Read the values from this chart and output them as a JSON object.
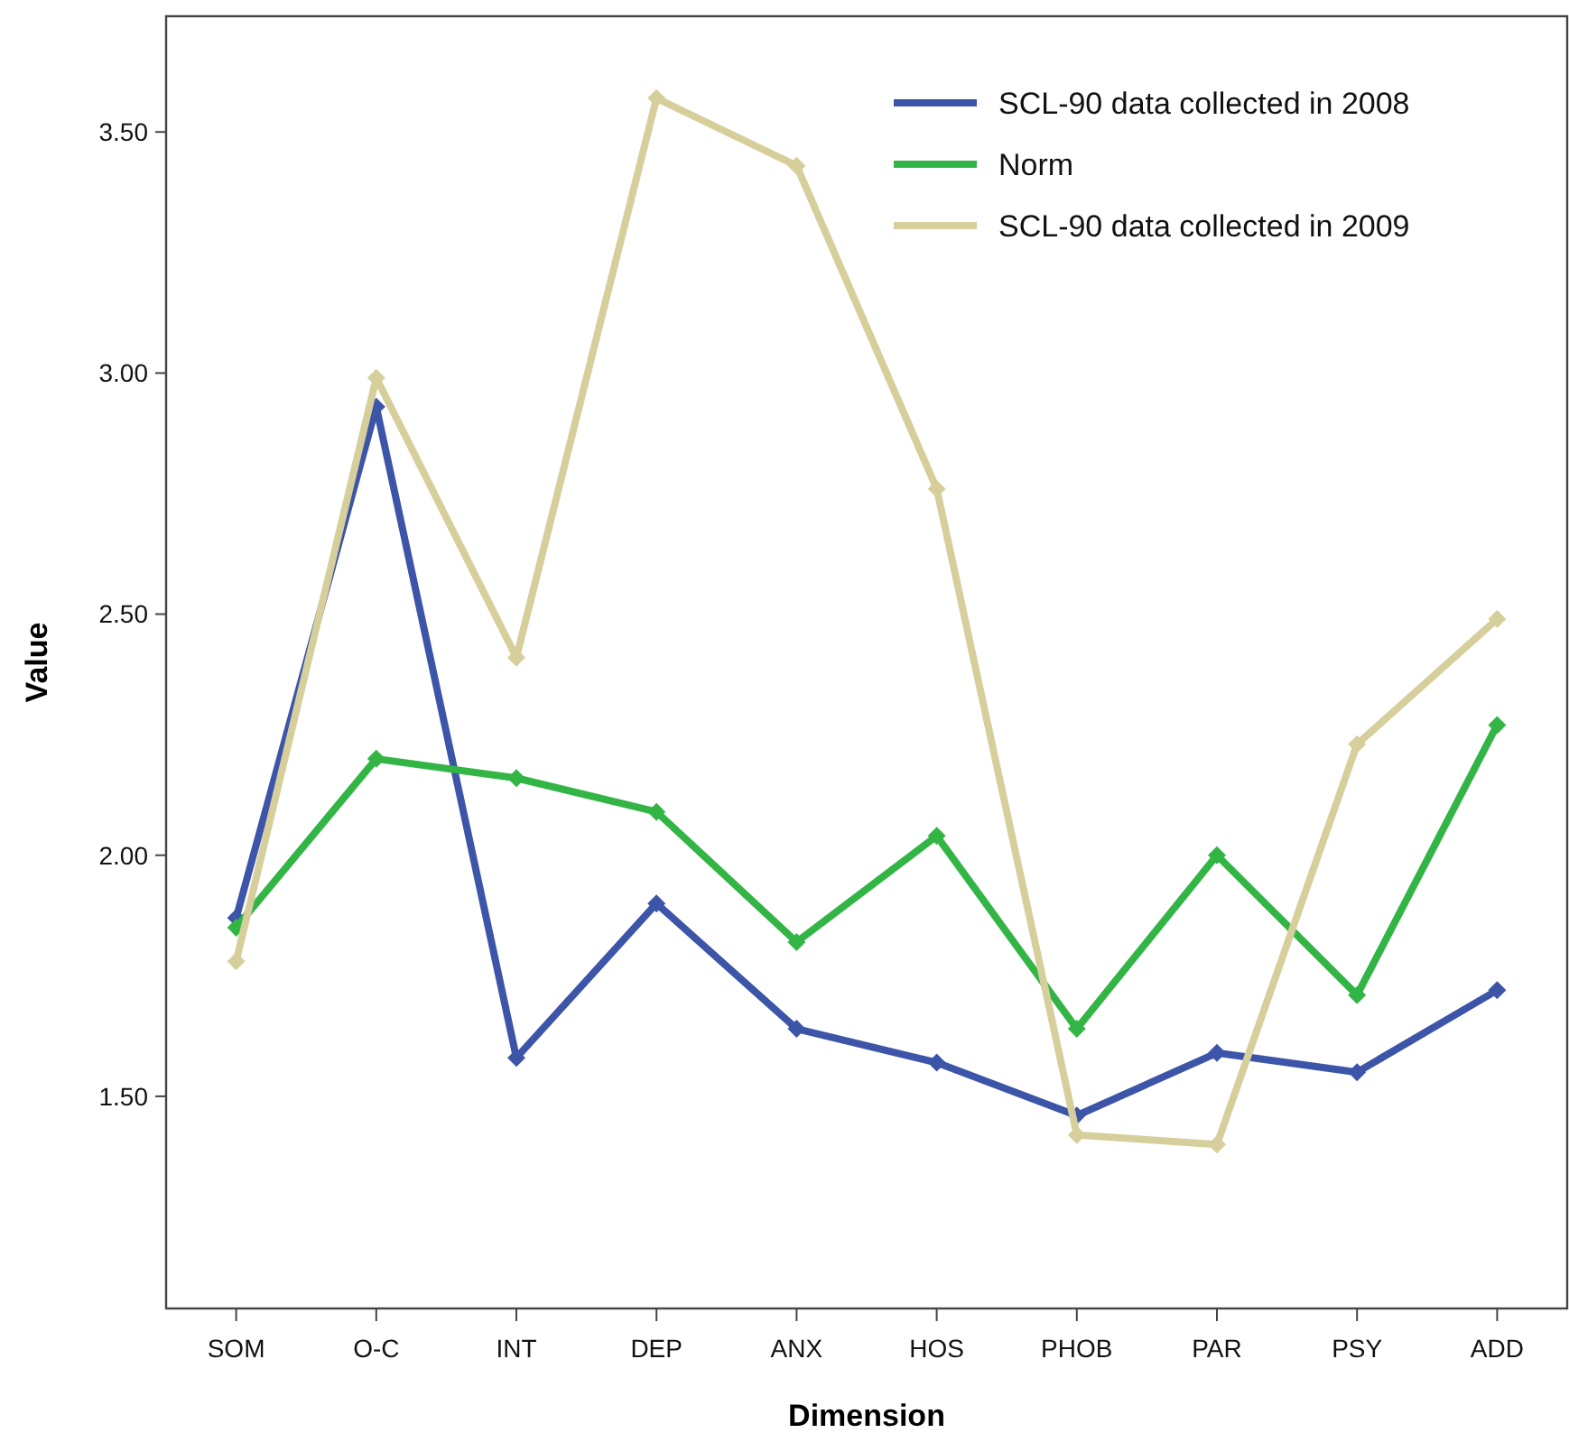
{
  "chart_data": {
    "type": "line",
    "xlabel": "Dimension",
    "ylabel": "Value",
    "categories": [
      "SOM",
      "O-C",
      "INT",
      "DEP",
      "ANX",
      "HOS",
      "PHOB",
      "PAR",
      "PSY",
      "ADD"
    ],
    "series": [
      {
        "name": "SCL-90 data collected in 2008",
        "color": "#3d55a8",
        "values": [
          1.87,
          2.93,
          1.58,
          1.9,
          1.64,
          1.57,
          1.46,
          1.59,
          1.55,
          1.72
        ]
      },
      {
        "name": "Norm",
        "color": "#33b546",
        "values": [
          1.85,
          2.2,
          2.16,
          2.09,
          1.82,
          2.04,
          1.64,
          2.0,
          1.71,
          2.27
        ]
      },
      {
        "name": "SCL-90 data collected in 2009",
        "color": "#d6cf9c",
        "values": [
          1.78,
          2.99,
          2.41,
          3.57,
          3.43,
          2.76,
          1.42,
          1.4,
          2.23,
          2.49
        ]
      }
    ],
    "ylim": [
      1.06,
      3.74
    ],
    "yticks": [
      {
        "value": 1.5,
        "label": "1.50"
      },
      {
        "value": 2,
        "label": "2.00"
      },
      {
        "value": 2.5,
        "label": "2.50"
      },
      {
        "value": 3,
        "label": "3.00"
      },
      {
        "value": 3.5,
        "label": "3.50"
      }
    ],
    "grid": false,
    "legend": "top right",
    "marker": "diamond",
    "line_style": "solid"
  }
}
